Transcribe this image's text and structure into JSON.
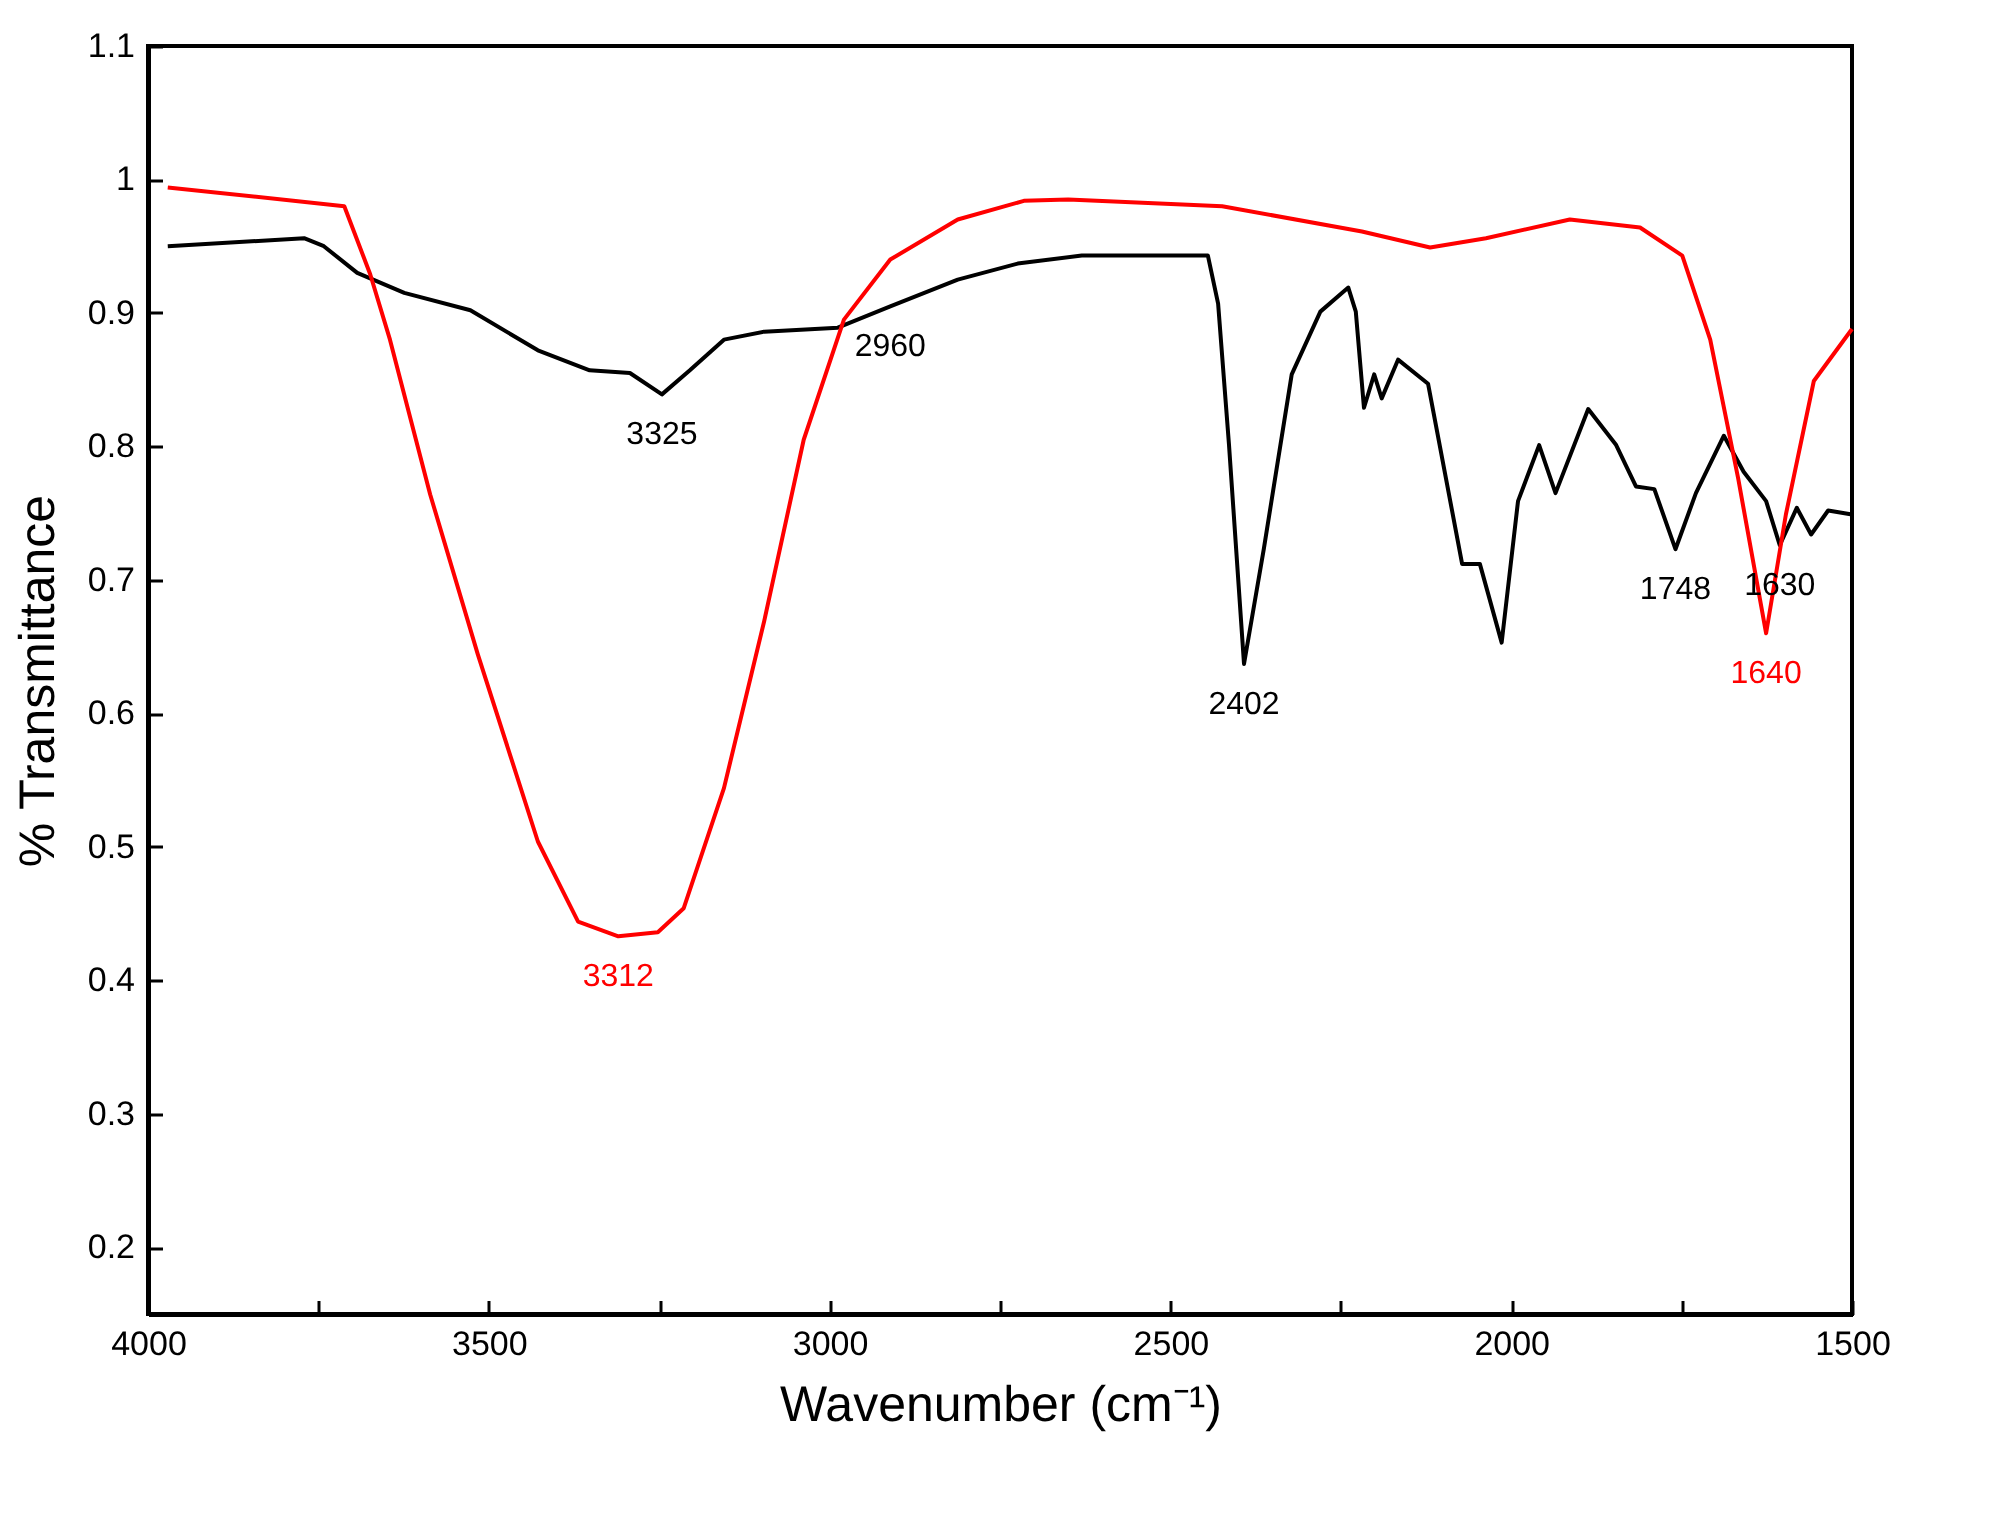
{
  "chart_data": {
    "type": "line",
    "xlabel": "Wavenumber (cm⁻¹)",
    "ylabel": "% Transmittance",
    "xlim": [
      4000,
      1500
    ],
    "ylim": [
      0.15,
      1.1
    ],
    "xticks": [
      4000,
      {
        "value": 3750,
        "label": null
      },
      3500,
      {
        "value": 3250,
        "label": null
      },
      3000,
      {
        "value": 2750,
        "label": null
      },
      2500,
      {
        "value": 2250,
        "label": null
      },
      2000,
      {
        "value": 1750,
        "label": null
      },
      1500
    ],
    "yticks": [
      0.2,
      0.3,
      0.4,
      0.5,
      0.6,
      0.7,
      0.8,
      0.9,
      1.0,
      1.1
    ],
    "grid": false,
    "legend": false,
    "marker": "none",
    "line_style": "solid",
    "series": [
      {
        "color": "#000000",
        "x": [
          3971,
          3771,
          3742,
          3693,
          3624,
          3527,
          3428,
          3352,
          3293,
          3246,
          3205,
          3155,
          3096,
          2988,
          2911,
          2812,
          2724,
          2630,
          2445,
          2430,
          2414,
          2392,
          2363,
          2322,
          2280,
          2239,
          2228,
          2216,
          2201,
          2190,
          2166,
          2122,
          2072,
          2046,
          2014,
          1990,
          1959,
          1935,
          1887,
          1846,
          1817,
          1790,
          1759,
          1729,
          1688,
          1659,
          1626,
          1606,
          1581,
          1560,
          1535,
          1500
        ],
        "values": [
          0.95,
          0.956,
          0.95,
          0.93,
          0.915,
          0.902,
          0.872,
          0.857,
          0.855,
          0.839,
          0.857,
          0.88,
          0.886,
          0.889,
          0.905,
          0.925,
          0.937,
          0.943,
          0.943,
          0.907,
          0.801,
          0.637,
          0.723,
          0.854,
          0.901,
          0.919,
          0.901,
          0.829,
          0.854,
          0.836,
          0.865,
          0.847,
          0.712,
          0.712,
          0.653,
          0.759,
          0.801,
          0.765,
          0.828,
          0.801,
          0.77,
          0.768,
          0.723,
          0.765,
          0.808,
          0.781,
          0.759,
          0.726,
          0.754,
          0.734,
          0.752,
          0.749
        ]
      },
      {
        "color": "#ff0000",
        "x": [
          3971,
          3712,
          3674,
          3645,
          3586,
          3516,
          3428,
          3369,
          3310,
          3252,
          3214,
          3155,
          3096,
          3038,
          2979,
          2911,
          2812,
          2715,
          2650,
          2424,
          2219,
          2119,
          2037,
          1914,
          1811,
          1749,
          1708,
          1667,
          1626,
          1597,
          1556,
          1500
        ],
        "values": [
          0.994,
          0.98,
          0.929,
          0.88,
          0.764,
          0.644,
          0.504,
          0.444,
          0.433,
          0.436,
          0.454,
          0.544,
          0.669,
          0.805,
          0.895,
          0.94,
          0.97,
          0.984,
          0.985,
          0.98,
          0.961,
          0.949,
          0.956,
          0.97,
          0.964,
          0.943,
          0.88,
          0.776,
          0.66,
          0.749,
          0.849,
          0.888
        ]
      }
    ],
    "annotations": [
      {
        "text": "3325",
        "x": 3246,
        "y": 0.839
      },
      {
        "text": "2960",
        "x": 2911,
        "y": 0.905
      },
      {
        "text": "2402",
        "x": 2392,
        "y": 0.637
      },
      {
        "text": "1748",
        "x": 1759,
        "y": 0.723
      },
      {
        "text": "1630",
        "x": 1606,
        "y": 0.726
      },
      {
        "text": "3312",
        "x": 3310,
        "y": 0.433
      },
      {
        "text": "1640",
        "x": 1626,
        "y": 0.66
      }
    ]
  }
}
